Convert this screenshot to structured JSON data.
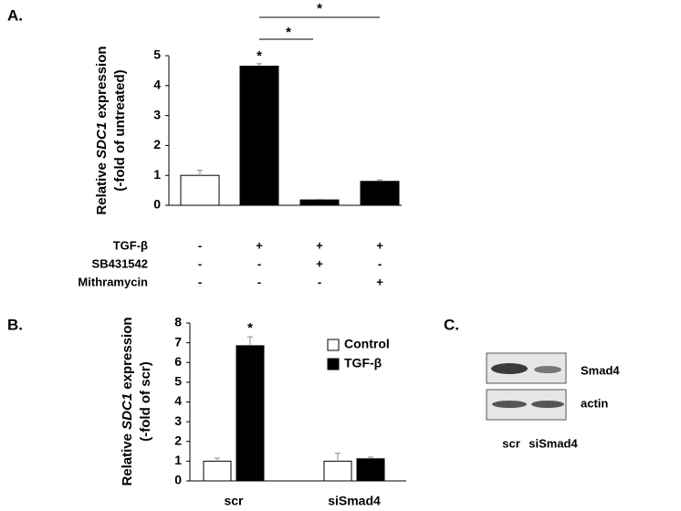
{
  "chart_data": [
    {
      "type": "bar",
      "panel_label": "A.",
      "ylabel": [
        "Relative ",
        "SDC1",
        " expression"
      ],
      "ylabel2": "(-fold of untreated)",
      "values": [
        1,
        4.65,
        0.18,
        0.8
      ],
      "errors": [
        0.17,
        0.08,
        0.02,
        0.05
      ],
      "colors": [
        "#ffffff",
        "#000000",
        "#000000",
        "#000000"
      ],
      "ylim": [
        0,
        5
      ],
      "yticks": [
        0,
        1,
        2,
        3,
        4,
        5
      ],
      "conditions": [
        {
          "label": "TGF-β",
          "signs": [
            "-",
            "+",
            "+",
            "+"
          ]
        },
        {
          "label": "SB431542",
          "signs": [
            "-",
            "-",
            "+",
            "-"
          ]
        },
        {
          "label": "Mithramycin",
          "signs": [
            "-",
            "-",
            "-",
            "+"
          ]
        }
      ],
      "annotations": [
        "*",
        "*",
        "*"
      ]
    },
    {
      "type": "grouped-bar",
      "panel_label": "B.",
      "ylabel": [
        "Relative ",
        "SDC1",
        " expression"
      ],
      "ylabel2": "(-fold of scr)",
      "categories": [
        "scr",
        "siSmad4"
      ],
      "series": [
        {
          "name": "Control",
          "color": "#ffffff",
          "values": [
            1,
            1.0
          ],
          "errors": [
            0.15,
            0.4
          ]
        },
        {
          "name": "TGF-β",
          "color": "#000000",
          "values": [
            6.85,
            1.12
          ],
          "errors": [
            0.45,
            0.08
          ]
        }
      ],
      "ylim": [
        0,
        8
      ],
      "yticks": [
        0,
        1,
        2,
        3,
        4,
        5,
        6,
        7,
        8
      ],
      "annotations": [
        "*"
      ]
    }
  ],
  "blot": {
    "panel_label": "C.",
    "rows": [
      "Smad4",
      "actin"
    ],
    "lanes": [
      "scr",
      "siSmad4"
    ]
  }
}
